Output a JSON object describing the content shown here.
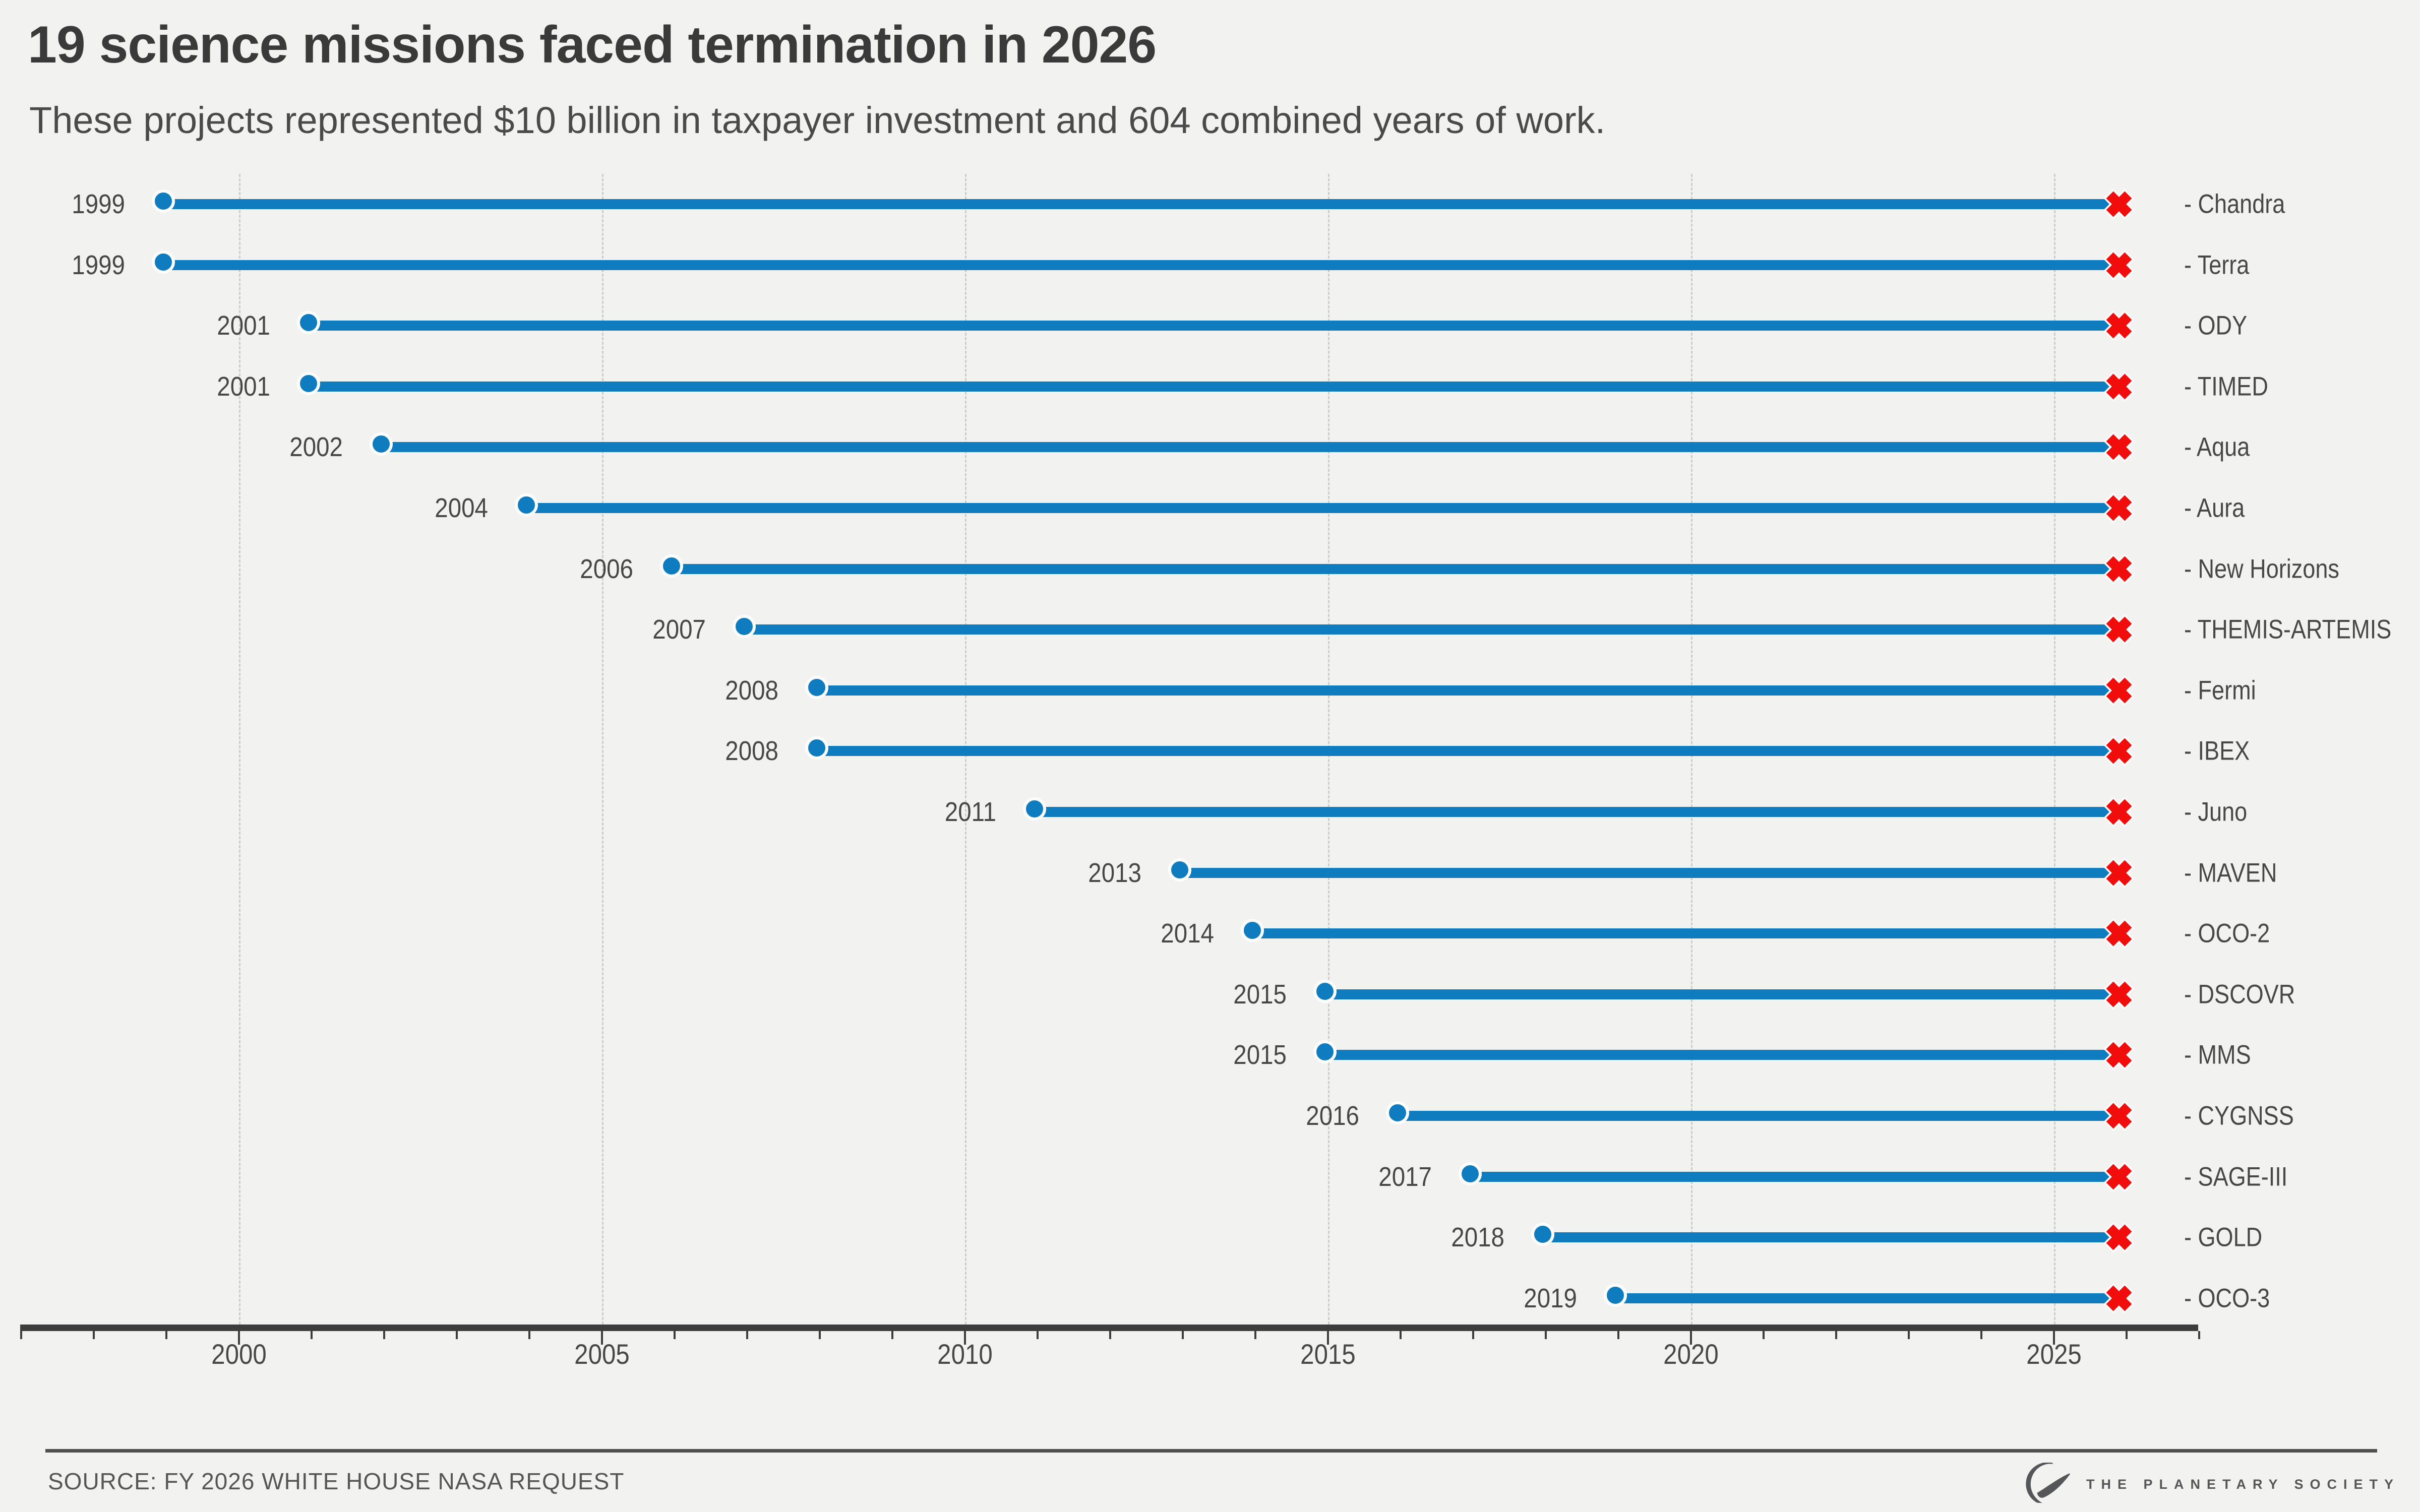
{
  "header": {
    "title": "19 science missions faced termination in 2026",
    "subtitle": "These projects represented $10 billion in taxpayer investment and 604 combined years of work."
  },
  "footer": {
    "source": "SOURCE: FY 2026 WHITE HOUSE NASA REQUEST",
    "logo_text": "THE PLANETARY SOCIETY",
    "logo_icon": "planetary-society-sail-orbit-icon"
  },
  "colors": {
    "background": "#f2f2f0",
    "line_blue": "#0e7cbe",
    "marker_red": "#f20d0d",
    "axis_gray": "#3d3d3d",
    "grid_gray": "#cdcdcd",
    "text_dark": "#3a3a3a",
    "text_medium": "#474747",
    "divider_gray": "#4f4f4f",
    "logo_gray": "#55565a"
  },
  "chart_data": {
    "type": "bar",
    "variant": "horizontal lollipop timeline (start dot → line → red X at termination)",
    "title": "19 science missions faced termination in 2026",
    "xlabel": "",
    "ylabel": "",
    "x_axis": {
      "range": [
        1997,
        2027
      ],
      "major_ticks": [
        2000,
        2005,
        2010,
        2015,
        2020,
        2025
      ],
      "major_tick_labels": [
        "2000",
        "2005",
        "2010",
        "2015",
        "2020",
        "2025"
      ],
      "minor_tick_every_years": 1,
      "gridlines": "vertical dashed at major ticks"
    },
    "termination_year": 2026,
    "start_marker": "blue-dot",
    "end_marker": "red-x",
    "missions": [
      {
        "label": "- Chandra",
        "start_label": "1999",
        "start_year": 1999,
        "end_year": 2026
      },
      {
        "label": "- Terra",
        "start_label": "1999",
        "start_year": 1999,
        "end_year": 2026
      },
      {
        "label": "- ODY",
        "start_label": "2001",
        "start_year": 2001,
        "end_year": 2026
      },
      {
        "label": "- TIMED",
        "start_label": "2001",
        "start_year": 2001,
        "end_year": 2026
      },
      {
        "label": "- Aqua",
        "start_label": "2002",
        "start_year": 2002,
        "end_year": 2026
      },
      {
        "label": "- Aura",
        "start_label": "2004",
        "start_year": 2004,
        "end_year": 2026
      },
      {
        "label": "- New Horizons",
        "start_label": "2006",
        "start_year": 2006,
        "end_year": 2026
      },
      {
        "label": "- THEMIS-ARTEMIS",
        "start_label": "2007",
        "start_year": 2007,
        "end_year": 2026
      },
      {
        "label": "- Fermi",
        "start_label": "2008",
        "start_year": 2008,
        "end_year": 2026
      },
      {
        "label": "- IBEX",
        "start_label": "2008",
        "start_year": 2008,
        "end_year": 2026
      },
      {
        "label": "- Juno",
        "start_label": "2011",
        "start_year": 2011,
        "end_year": 2026
      },
      {
        "label": "- MAVEN",
        "start_label": "2013",
        "start_year": 2013,
        "end_year": 2026
      },
      {
        "label": "- OCO-2",
        "start_label": "2014",
        "start_year": 2014,
        "end_year": 2026
      },
      {
        "label": "- DSCOVR",
        "start_label": "2015",
        "start_year": 2015,
        "end_year": 2026
      },
      {
        "label": "- MMS",
        "start_label": "2015",
        "start_year": 2015,
        "end_year": 2026
      },
      {
        "label": "- CYGNSS",
        "start_label": "2016",
        "start_year": 2016,
        "end_year": 2026
      },
      {
        "label": "- SAGE-III",
        "start_label": "2017",
        "start_year": 2017,
        "end_year": 2026
      },
      {
        "label": "- GOLD",
        "start_label": "2018",
        "start_year": 2018,
        "end_year": 2026
      },
      {
        "label": "- OCO-3",
        "start_label": "2019",
        "start_year": 2019,
        "end_year": 2026
      }
    ]
  }
}
